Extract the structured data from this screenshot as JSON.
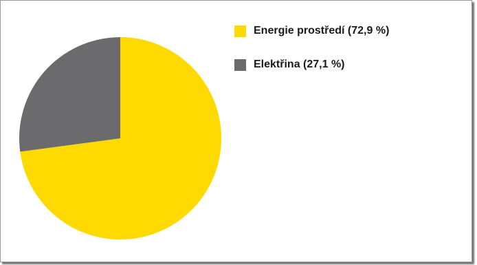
{
  "chart_data": {
    "type": "pie",
    "title": "",
    "slices": [
      {
        "label": "Energie prostředí (72,9 %)",
        "value": 72.9,
        "color": "#FFDA00"
      },
      {
        "label": "Elektřina (27,1 %)",
        "value": 27.1,
        "color": "#6B6B6D"
      }
    ],
    "legend_position": "top-right"
  }
}
